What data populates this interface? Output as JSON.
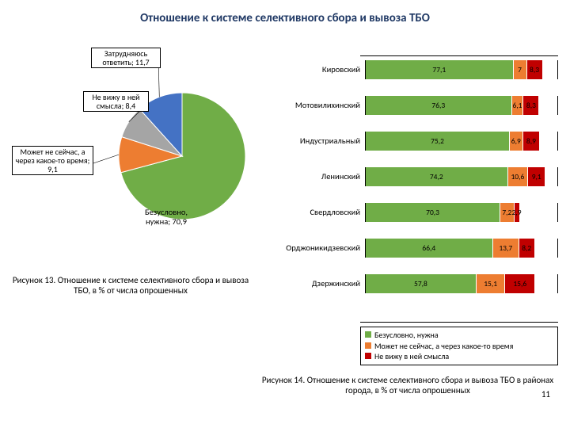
{
  "title": "Отношение к системе селективного сбора и вывоза ТБО",
  "colors": {
    "green": "#70ad47",
    "orange": "#ed7d31",
    "red": "#c00000",
    "blue": "#4472c4",
    "gray": "#a5a5a5"
  },
  "pie": {
    "slices": [
      {
        "key": "green",
        "value": 70.9,
        "label_line1": "Безусловно,",
        "label_line2": "нужна; 70,9"
      },
      {
        "key": "orange",
        "value": 9.1,
        "label": "Может не сейчас, а через какое-то время; 9,1"
      },
      {
        "key": "gray",
        "value": 8.4,
        "label": "Не вижу в ней смысла; 8,4"
      },
      {
        "key": "blue",
        "value": 11.7,
        "label": "Затрудняюсь ответить; 11,7"
      }
    ],
    "caption": "Рисунок 13. Отношение к системе селективного сбора и вывоза ТБО, в % от числа опрошенных"
  },
  "bars": {
    "categories": [
      {
        "name": "Кировский",
        "v": [
          77.1,
          7.0,
          8.3
        ]
      },
      {
        "name": "Мотовилихинский",
        "v": [
          76.3,
          6.1,
          8.3
        ]
      },
      {
        "name": "Индустриальный",
        "v": [
          75.2,
          6.9,
          8.9
        ]
      },
      {
        "name": "Ленинский",
        "v": [
          74.2,
          10.6,
          9.1
        ]
      },
      {
        "name": "Свердловский",
        "v": [
          70.3,
          7.2,
          2.9
        ]
      },
      {
        "name": "Орджоникидзевский",
        "v": [
          66.4,
          13.7,
          8.2
        ]
      },
      {
        "name": "Дзержинский",
        "v": [
          57.8,
          15.1,
          15.6
        ]
      }
    ],
    "series_keys": [
      "green",
      "orange",
      "red"
    ],
    "legend": [
      "Безусловно, нужна",
      "Может не сейчас, а через какое-то время",
      "Не вижу в ней смысла"
    ],
    "caption": "Рисунок 14. Отношение к системе селективного сбора и вывоза ТБО в районах города, в % от числа опрошенных"
  },
  "page_number": "11"
}
